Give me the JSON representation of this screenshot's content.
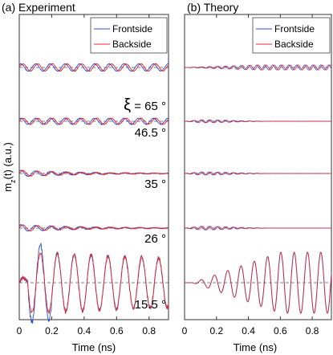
{
  "chart_data": [
    {
      "type": "line",
      "panel_title": "(a) Experiment",
      "xlabel": "Time (ns)",
      "ylabel": "m_z(t) (a.u.)",
      "xlim": [
        0,
        0.92
      ],
      "xticks": [
        0,
        0.2,
        0.4,
        0.6,
        0.8
      ],
      "x_tick_labels": [
        "0",
        "0.2",
        "0.4",
        "0.6",
        "0.8"
      ],
      "legend": [
        "Frontside",
        "Backside"
      ],
      "legend_position": "top-right",
      "series": [
        {
          "name": "Frontside",
          "color": "#2b50d8"
        },
        {
          "name": "Backside",
          "color": "#e8262b"
        }
      ],
      "traces": [
        {
          "label_value": "65",
          "label_symbol": "ξ",
          "label_equals": "=",
          "label_unit": "°",
          "frequency_ghz": 11.0,
          "envelope": "flat",
          "amplitude_au": 0.32,
          "phase_shift_frontside_rad": 0.9
        },
        {
          "label_value": "46.5",
          "label_unit": "°",
          "frequency_ghz": 11.0,
          "envelope": "flat",
          "amplitude_au": 0.27,
          "phase_shift_frontside_rad": 0.9
        },
        {
          "label_value": "35",
          "label_unit": "°",
          "frequency_ghz": 11.0,
          "envelope": "decaying",
          "amplitude_au": 0.28,
          "phase_shift_frontside_rad": 0.9
        },
        {
          "label_value": "26",
          "label_unit": "°",
          "frequency_ghz": 11.0,
          "envelope": "decaying",
          "amplitude_au": 0.3,
          "phase_shift_frontside_rad": 0.9
        },
        {
          "label_value": "15.5",
          "label_unit": "°",
          "frequency_ghz": 9.6,
          "envelope": "large",
          "amplitude_au": 1.0,
          "phase_shift_frontside_rad": 0.0
        }
      ]
    },
    {
      "type": "line",
      "panel_title": "(b) Theory",
      "xlabel": "Time (ns)",
      "xlim": [
        0,
        0.92
      ],
      "xticks": [
        0,
        0.2,
        0.4,
        0.6,
        0.8
      ],
      "x_tick_labels": [
        "0",
        "0.2",
        "0.4",
        "0.6",
        "0.8"
      ],
      "legend": [
        "Frontside",
        "Backside"
      ],
      "legend_position": "top-right",
      "series": [
        {
          "name": "Frontside",
          "color": "#2b50d8"
        },
        {
          "name": "Backside",
          "color": "#e8262b"
        }
      ],
      "traces": [
        {
          "frequency_ghz": 20.0,
          "envelope": "rising-flat",
          "amplitude_au": 0.22,
          "phase_shift_frontside_rad": 1.2
        },
        {
          "frequency_ghz": 20.0,
          "envelope": "packet",
          "amplitude_au": 0.13,
          "phase_shift_frontside_rad": 1.2
        },
        {
          "frequency_ghz": 20.0,
          "envelope": "packet",
          "amplitude_au": 0.14,
          "phase_shift_frontside_rad": 1.2
        },
        {
          "frequency_ghz": 20.0,
          "envelope": "packet",
          "amplitude_au": 0.16,
          "phase_shift_frontside_rad": 1.2
        },
        {
          "frequency_ghz": 12.0,
          "envelope": "rising",
          "amplitude_au": 1.0,
          "phase_shift_frontside_rad": 0.1
        }
      ]
    }
  ]
}
